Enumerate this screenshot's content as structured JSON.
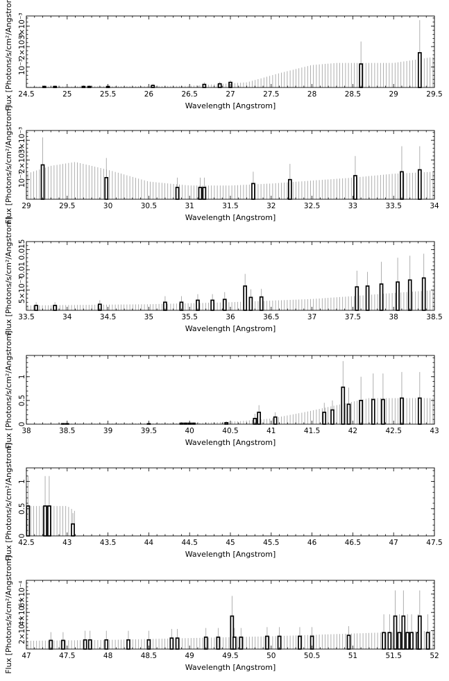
{
  "chart_data": [
    {
      "type": "bar",
      "xlabel": "Wavelength [Angstrom]",
      "ylabel": "Flux [Photons/s/cm²/Angstrom]",
      "xlim": [
        24.5,
        29.5
      ],
      "ylim": [
        0,
        0.0035
      ],
      "x_ticks": [
        "24.5",
        "25",
        "25.5",
        "26",
        "26.5",
        "27",
        "27.5",
        "28",
        "28.5",
        "29",
        "29.5"
      ],
      "y_ticks": [
        "10⁻³",
        "2×10⁻³",
        "3×10⁻³"
      ],
      "bars": [
        {
          "x": 24.72,
          "y": 5e-05,
          "err": 5e-05
        },
        {
          "x": 24.85,
          "y": 5e-05,
          "err": 5e-05
        },
        {
          "x": 25.2,
          "y": 5e-05,
          "err": 5e-05
        },
        {
          "x": 25.27,
          "y": 5e-05,
          "err": 5e-05
        },
        {
          "x": 25.5,
          "y": 5e-05,
          "err": 5e-05
        },
        {
          "x": 26.05,
          "y": 0.0001,
          "err": 8e-05
        },
        {
          "x": 26.68,
          "y": 0.00015,
          "err": 0.0001
        },
        {
          "x": 26.87,
          "y": 0.00018,
          "err": 0.0001
        },
        {
          "x": 27.0,
          "y": 0.00025,
          "err": 0.0001
        },
        {
          "x": 28.6,
          "y": 0.00115,
          "err": 0.0011
        },
        {
          "x": 29.32,
          "y": 0.0017,
          "err": 0.0016
        }
      ],
      "err_envelope": [
        [
          24.5,
          4e-05
        ],
        [
          26.5,
          8e-05
        ],
        [
          27.2,
          0.00025
        ],
        [
          27.6,
          0.0007
        ],
        [
          28.0,
          0.0011
        ],
        [
          28.3,
          0.0012
        ],
        [
          29.0,
          0.0012
        ],
        [
          29.5,
          0.0015
        ]
      ]
    },
    {
      "type": "bar",
      "xlabel": "Wavelength [Angstrom]",
      "ylabel": "Flux [Photons/s/cm²/Angstrom]",
      "xlim": [
        29,
        34
      ],
      "ylim": [
        0,
        0.0035
      ],
      "x_ticks": [
        "29",
        "29.5",
        "30",
        "30.5",
        "31",
        "31.5",
        "32",
        "32.5",
        "33",
        "33.5",
        "34"
      ],
      "y_ticks": [
        "10⁻³",
        "2×10⁻³",
        "3×10⁻³"
      ],
      "bars": [
        {
          "x": 29.2,
          "y": 0.00175,
          "err": 0.0014
        },
        {
          "x": 29.98,
          "y": 0.0011,
          "err": 0.001
        },
        {
          "x": 30.85,
          "y": 0.0006,
          "err": 0.0005
        },
        {
          "x": 31.13,
          "y": 0.0006,
          "err": 0.0005
        },
        {
          "x": 31.18,
          "y": 0.0006,
          "err": 0.0005
        },
        {
          "x": 31.78,
          "y": 0.0008,
          "err": 0.0006
        },
        {
          "x": 32.23,
          "y": 0.001,
          "err": 0.0008
        },
        {
          "x": 33.03,
          "y": 0.0012,
          "err": 0.001
        },
        {
          "x": 33.6,
          "y": 0.0014,
          "err": 0.0013
        },
        {
          "x": 33.82,
          "y": 0.0015,
          "err": 0.0012
        }
      ],
      "err_envelope": [
        [
          29.0,
          0.0013
        ],
        [
          29.3,
          0.0017
        ],
        [
          29.6,
          0.0019
        ],
        [
          30.0,
          0.0015
        ],
        [
          30.5,
          0.0009
        ],
        [
          31.0,
          0.0007
        ],
        [
          31.5,
          0.0007
        ],
        [
          32.0,
          0.0008
        ],
        [
          33.0,
          0.0011
        ],
        [
          33.5,
          0.0013
        ],
        [
          34.0,
          0.0014
        ]
      ]
    },
    {
      "type": "bar",
      "xlabel": "Wavelength [Angstrom]",
      "ylabel": "Flux [Photons/s/cm²/Angstrom]",
      "xlim": [
        33.5,
        38.5
      ],
      "ylim": [
        0,
        0.017
      ],
      "x_ticks": [
        "33.5",
        "34",
        "34.5",
        "35",
        "35.5",
        "36",
        "36.5",
        "37",
        "37.5",
        "38",
        "38.5"
      ],
      "y_ticks": [
        "5×10⁻³",
        "0.01",
        "0.015"
      ],
      "bars": [
        {
          "x": 33.62,
          "y": 0.0012,
          "err": 0.0008
        },
        {
          "x": 33.85,
          "y": 0.0012,
          "err": 0.0008
        },
        {
          "x": 34.4,
          "y": 0.0015,
          "err": 0.001
        },
        {
          "x": 35.2,
          "y": 0.002,
          "err": 0.0015
        },
        {
          "x": 35.4,
          "y": 0.002,
          "err": 0.0015
        },
        {
          "x": 35.6,
          "y": 0.0025,
          "err": 0.0015
        },
        {
          "x": 35.78,
          "y": 0.0025,
          "err": 0.0015
        },
        {
          "x": 35.93,
          "y": 0.0027,
          "err": 0.0018
        },
        {
          "x": 36.18,
          "y": 0.006,
          "err": 0.003
        },
        {
          "x": 36.25,
          "y": 0.0032,
          "err": 0.002
        },
        {
          "x": 36.38,
          "y": 0.0033,
          "err": 0.002
        },
        {
          "x": 37.55,
          "y": 0.0058,
          "err": 0.004
        },
        {
          "x": 37.68,
          "y": 0.006,
          "err": 0.0035
        },
        {
          "x": 37.85,
          "y": 0.0065,
          "err": 0.0055
        },
        {
          "x": 38.05,
          "y": 0.007,
          "err": 0.006
        },
        {
          "x": 38.2,
          "y": 0.0075,
          "err": 0.006
        },
        {
          "x": 38.37,
          "y": 0.008,
          "err": 0.006
        }
      ],
      "err_envelope": [
        [
          33.5,
          0.0012
        ],
        [
          35.0,
          0.0015
        ],
        [
          36.0,
          0.002
        ],
        [
          37.0,
          0.0028
        ],
        [
          37.5,
          0.0035
        ],
        [
          38.0,
          0.0043
        ],
        [
          38.5,
          0.005
        ]
      ]
    },
    {
      "type": "bar",
      "xlabel": "Wavelength [Angstrom]",
      "ylabel": "Flux [Photons/s/cm²/Angstrom]",
      "xlim": [
        38,
        43
      ],
      "ylim": [
        0,
        1.45
      ],
      "x_ticks": [
        "38",
        "38.5",
        "39",
        "39.5",
        "40",
        "40.5",
        "41",
        "41.5",
        "42",
        "42.5",
        "43"
      ],
      "y_ticks": [
        "0",
        "0.5",
        "1"
      ],
      "bars": [
        {
          "x": 38.45,
          "y": 0.01,
          "err": 0.01
        },
        {
          "x": 38.5,
          "y": 0.01,
          "err": 0.01
        },
        {
          "x": 39.5,
          "y": 0.01,
          "err": 0.01
        },
        {
          "x": 39.9,
          "y": 0.02,
          "err": 0.015
        },
        {
          "x": 39.95,
          "y": 0.02,
          "err": 0.015
        },
        {
          "x": 40.0,
          "y": 0.02,
          "err": 0.015
        },
        {
          "x": 40.05,
          "y": 0.02,
          "err": 0.015
        },
        {
          "x": 40.45,
          "y": 0.03,
          "err": 0.03
        },
        {
          "x": 40.8,
          "y": 0.12,
          "err": 0.1
        },
        {
          "x": 40.85,
          "y": 0.25,
          "err": 0.15
        },
        {
          "x": 41.05,
          "y": 0.15,
          "err": 0.1
        },
        {
          "x": 41.65,
          "y": 0.25,
          "err": 0.2
        },
        {
          "x": 41.75,
          "y": 0.3,
          "err": 0.2
        },
        {
          "x": 41.88,
          "y": 0.78,
          "err": 0.55
        },
        {
          "x": 41.95,
          "y": 0.42,
          "err": 0.35
        },
        {
          "x": 42.1,
          "y": 0.5,
          "err": 0.5
        },
        {
          "x": 42.25,
          "y": 0.52,
          "err": 0.55
        },
        {
          "x": 42.37,
          "y": 0.52,
          "err": 0.55
        },
        {
          "x": 42.6,
          "y": 0.55,
          "err": 0.55
        },
        {
          "x": 42.82,
          "y": 0.55,
          "err": 0.55
        }
      ],
      "err_envelope": [
        [
          38.0,
          0.01
        ],
        [
          40.0,
          0.02
        ],
        [
          40.6,
          0.06
        ],
        [
          41.0,
          0.12
        ],
        [
          41.4,
          0.25
        ],
        [
          41.8,
          0.4
        ],
        [
          42.2,
          0.55
        ],
        [
          42.6,
          0.55
        ],
        [
          43.0,
          0.55
        ]
      ]
    },
    {
      "type": "bar",
      "xlabel": "Wavelength [Angstrom]",
      "ylabel": "Flux [Photons/s/cm²/Angstrom]",
      "xlim": [
        42.5,
        47.5
      ],
      "ylim": [
        0,
        1.25
      ],
      "x_ticks": [
        "42.5",
        "43",
        "43.5",
        "44",
        "44.5",
        "45",
        "45.5",
        "46",
        "46.5",
        "47",
        "47.5"
      ],
      "y_ticks": [
        "0",
        "0.5",
        "1"
      ],
      "bars": [
        {
          "x": 42.52,
          "y": 0.55,
          "err": 0.55
        },
        {
          "x": 42.73,
          "y": 0.55,
          "err": 0.55
        },
        {
          "x": 42.78,
          "y": 0.55,
          "err": 0.55
        },
        {
          "x": 43.07,
          "y": 0.22,
          "err": 0.2
        }
      ],
      "err_envelope": [
        [
          42.5,
          0.55
        ],
        [
          43.0,
          0.55
        ],
        [
          43.1,
          0.45
        ]
      ]
    },
    {
      "type": "bar",
      "xlabel": "Wavelength [Angstrom]",
      "ylabel": "Flux [Photons/s/cm²/Angstrom]",
      "xlim": [
        47,
        52
      ],
      "ylim": [
        0,
        0.00075
      ],
      "x_ticks": [
        "47",
        "47.5",
        "48",
        "48.5",
        "49",
        "49.5",
        "50",
        "50.5",
        "51",
        "51.5",
        "52"
      ],
      "y_ticks": [
        "2×10⁻⁴",
        "4×10⁻⁴",
        "6×10⁻⁴"
      ],
      "bars": [
        {
          "x": 47.3,
          "y": 9.5e-05,
          "err": 9e-05
        },
        {
          "x": 47.45,
          "y": 9.5e-05,
          "err": 9e-05
        },
        {
          "x": 47.72,
          "y": 0.0001,
          "err": 0.0001
        },
        {
          "x": 47.78,
          "y": 0.0001,
          "err": 0.0001
        },
        {
          "x": 47.98,
          "y": 0.0001,
          "err": 0.0001
        },
        {
          "x": 48.25,
          "y": 0.0001,
          "err": 0.0001
        },
        {
          "x": 48.5,
          "y": 0.0001,
          "err": 0.0001
        },
        {
          "x": 48.78,
          "y": 0.00012,
          "err": 0.0001
        },
        {
          "x": 48.85,
          "y": 0.00012,
          "err": 0.0001
        },
        {
          "x": 49.2,
          "y": 0.00013,
          "err": 0.0001
        },
        {
          "x": 49.35,
          "y": 0.00013,
          "err": 0.0001
        },
        {
          "x": 49.52,
          "y": 0.00036,
          "err": 0.00022
        },
        {
          "x": 49.55,
          "y": 0.00013,
          "err": 0.0001
        },
        {
          "x": 49.63,
          "y": 0.00013,
          "err": 0.0001
        },
        {
          "x": 49.95,
          "y": 0.00014,
          "err": 0.0001
        },
        {
          "x": 50.1,
          "y": 0.00014,
          "err": 0.0001
        },
        {
          "x": 50.35,
          "y": 0.00014,
          "err": 0.0001
        },
        {
          "x": 50.5,
          "y": 0.00014,
          "err": 0.0001
        },
        {
          "x": 50.95,
          "y": 0.00015,
          "err": 0.0001
        },
        {
          "x": 51.38,
          "y": 0.00018,
          "err": 0.0002
        },
        {
          "x": 51.45,
          "y": 0.00018,
          "err": 0.0002
        },
        {
          "x": 51.52,
          "y": 0.00036,
          "err": 0.00028
        },
        {
          "x": 51.57,
          "y": 0.00018,
          "err": 0.0002
        },
        {
          "x": 51.62,
          "y": 0.00036,
          "err": 0.00028
        },
        {
          "x": 51.67,
          "y": 0.00018,
          "err": 0.0002
        },
        {
          "x": 51.72,
          "y": 0.00018,
          "err": 0.0002
        },
        {
          "x": 51.8,
          "y": 0.00018,
          "err": 0.0002
        },
        {
          "x": 51.82,
          "y": 0.00036,
          "err": 0.00028
        },
        {
          "x": 51.92,
          "y": 0.00018,
          "err": 0.0002
        }
      ],
      "err_envelope": [
        [
          47.0,
          9e-05
        ],
        [
          48.0,
          0.0001
        ],
        [
          49.0,
          0.00012
        ],
        [
          50.0,
          0.00014
        ],
        [
          51.0,
          0.00017
        ],
        [
          52.0,
          0.0002
        ]
      ]
    }
  ]
}
